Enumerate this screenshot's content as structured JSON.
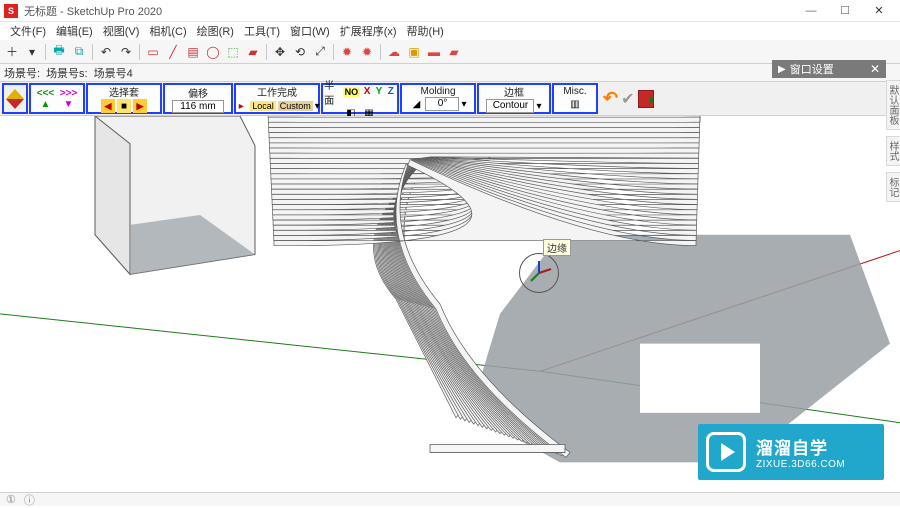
{
  "window": {
    "title": "无标题 - SketchUp Pro 2020"
  },
  "menus": [
    "文件(F)",
    "编辑(E)",
    "视图(V)",
    "相机(C)",
    "绘图(R)",
    "工具(T)",
    "窗口(W)",
    "扩展程序(x)",
    "帮助(H)"
  ],
  "toolbar_icons": [
    {
      "name": "new-icon",
      "glyph": "＋",
      "color": "#333"
    },
    {
      "name": "open-icon",
      "glyph": "▾",
      "color": "#333"
    },
    {
      "sep": true
    },
    {
      "name": "print-icon",
      "glyph": "🖶",
      "color": "#0aa"
    },
    {
      "name": "layer-icon",
      "glyph": "⧉",
      "color": "#0aa"
    },
    {
      "sep": true
    },
    {
      "name": "undo-icon",
      "glyph": "↶",
      "color": "#333"
    },
    {
      "name": "redo-icon",
      "glyph": "↷",
      "color": "#333"
    },
    {
      "sep": true
    },
    {
      "name": "select-icon",
      "glyph": "▭",
      "color": "#c33"
    },
    {
      "name": "line-icon",
      "glyph": "╱",
      "color": "#c33"
    },
    {
      "name": "rect-icon",
      "glyph": "▤",
      "color": "#c33"
    },
    {
      "name": "circle-icon",
      "glyph": "◯",
      "color": "#c33"
    },
    {
      "name": "push-icon",
      "glyph": "⬚",
      "color": "#3a3"
    },
    {
      "name": "paint-icon",
      "glyph": "▰",
      "color": "#c33"
    },
    {
      "sep": true
    },
    {
      "name": "move-icon",
      "glyph": "✥",
      "color": "#333"
    },
    {
      "name": "rotate-icon",
      "glyph": "⟲",
      "color": "#333"
    },
    {
      "name": "scale-icon",
      "glyph": "⤢",
      "color": "#333"
    },
    {
      "sep": true
    },
    {
      "name": "gear1-icon",
      "glyph": "✹",
      "color": "#d44"
    },
    {
      "name": "gear2-icon",
      "glyph": "✹",
      "color": "#d44"
    },
    {
      "sep": true
    },
    {
      "name": "cloud-icon",
      "glyph": "☁",
      "color": "#d44"
    },
    {
      "name": "box-icon",
      "glyph": "▣",
      "color": "#d90"
    },
    {
      "name": "folder-icon",
      "glyph": "▬",
      "color": "#d44"
    },
    {
      "name": "cam-icon",
      "glyph": "▰",
      "color": "#d44"
    }
  ],
  "tag_row": {
    "prefix1": "场景号:",
    "prefix2": "场景号s:",
    "label": "场景号4"
  },
  "plugin": {
    "select": {
      "header": "选择套"
    },
    "offset": {
      "header": "偏移",
      "value": "116 mm"
    },
    "complete": {
      "header": "工作完成",
      "local": "Local",
      "custom": "Custom"
    },
    "axes": {
      "header": "半面",
      "no": "NO",
      "x": "X",
      "y": "Y",
      "z": "Z"
    },
    "molding": {
      "header": "Molding",
      "value": "0°"
    },
    "slot": {
      "header": "边框",
      "value": "Contour"
    },
    "misc": {
      "header": "Misc."
    }
  },
  "right_panel": {
    "title": "窗口设置"
  },
  "right_tabs": [
    "默认面板",
    "样式",
    "标记"
  ],
  "tooltip": "边缘",
  "watermark": {
    "cn": "溜溜自学",
    "en": "ZIXUE.3D66.COM"
  },
  "status": {
    "left1": "①",
    "left2": "ⓘ"
  },
  "viewport": {
    "bg": "#ffffff",
    "floor_shadow": "#999fa5",
    "object_fill": "#f4f4f4",
    "object_stroke": "#5c5c5c",
    "axis_red": "#b21818",
    "axis_green": "#1a7d1a",
    "axis_blue": "#1040d0"
  }
}
